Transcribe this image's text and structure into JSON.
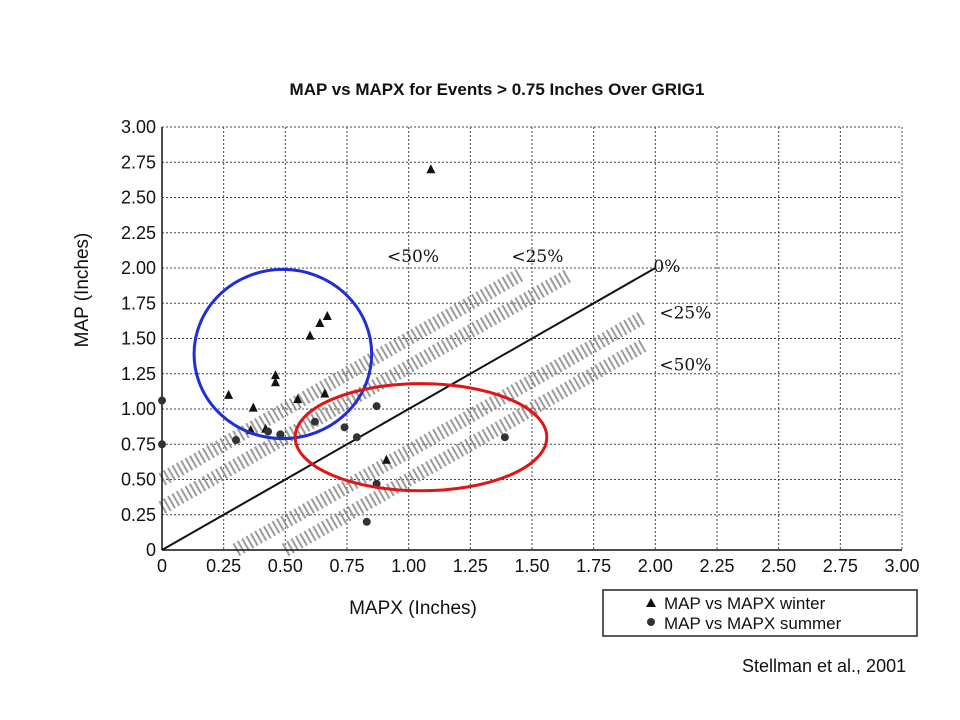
{
  "chart_data": {
    "type": "scatter",
    "title": "MAP vs MAPX for Events > 0.75 Inches Over GRIG1",
    "xlabel": "MAPX (Inches)",
    "ylabel": "MAP (Inches)",
    "xlim": [
      0,
      3.0
    ],
    "ylim": [
      0,
      3.0
    ],
    "x_ticks": [
      "0",
      "0.25",
      "0.50",
      "0.75",
      "1.00",
      "1.25",
      "1.50",
      "1.75",
      "2.00",
      "2.25",
      "2.50",
      "2.75",
      "3.00"
    ],
    "y_ticks": [
      "0",
      "0.25",
      "0.50",
      "0.75",
      "1.00",
      "1.25",
      "1.50",
      "1.75",
      "2.00",
      "2.25",
      "2.50",
      "2.75",
      "3.00"
    ],
    "grid": true,
    "legend_position": "bottom-right",
    "series": [
      {
        "name": "MAP vs MAPX winter",
        "marker": "triangle",
        "points": [
          {
            "x": 0.27,
            "y": 1.1
          },
          {
            "x": 0.36,
            "y": 0.85
          },
          {
            "x": 0.37,
            "y": 1.01
          },
          {
            "x": 0.42,
            "y": 0.86
          },
          {
            "x": 0.46,
            "y": 1.24
          },
          {
            "x": 0.46,
            "y": 1.19
          },
          {
            "x": 0.55,
            "y": 1.07
          },
          {
            "x": 0.6,
            "y": 1.52
          },
          {
            "x": 0.64,
            "y": 1.61
          },
          {
            "x": 0.67,
            "y": 1.66
          },
          {
            "x": 0.66,
            "y": 1.11
          },
          {
            "x": 0.91,
            "y": 0.64
          },
          {
            "x": 1.09,
            "y": 2.7
          }
        ]
      },
      {
        "name": "MAP vs MAPX summer",
        "marker": "circle",
        "points": [
          {
            "x": 0.0,
            "y": 1.06
          },
          {
            "x": 0.0,
            "y": 0.75
          },
          {
            "x": 0.3,
            "y": 0.78
          },
          {
            "x": 0.43,
            "y": 0.84
          },
          {
            "x": 0.48,
            "y": 0.82
          },
          {
            "x": 0.62,
            "y": 0.91
          },
          {
            "x": 0.74,
            "y": 0.87
          },
          {
            "x": 0.79,
            "y": 0.8
          },
          {
            "x": 0.83,
            "y": 0.2
          },
          {
            "x": 0.87,
            "y": 1.02
          },
          {
            "x": 0.87,
            "y": 0.47
          },
          {
            "x": 1.39,
            "y": 0.8
          }
        ]
      }
    ],
    "reference_line": {
      "x": [
        0,
        2.0
      ],
      "y": [
        0,
        2.0
      ],
      "label": "0%"
    },
    "bands": [
      {
        "label": "<25%",
        "side": "upper",
        "offset": 0.3
      },
      {
        "label": "<50%",
        "side": "upper",
        "offset": 0.5
      },
      {
        "label": "<25%",
        "side": "lower",
        "offset": 0.3
      },
      {
        "label": "<50%",
        "side": "lower",
        "offset": 0.5
      }
    ],
    "annotations": [
      {
        "shape": "ellipse",
        "color": "#1f2fd6",
        "center": {
          "x": 0.49,
          "y": 1.39
        },
        "rx": 0.36,
        "ry": 0.6
      },
      {
        "shape": "ellipse",
        "color": "#e01515",
        "center": {
          "x": 1.05,
          "y": 0.8
        },
        "rx": 0.51,
        "ry": 0.38
      }
    ]
  },
  "citation": "Stellman et al., 2001"
}
